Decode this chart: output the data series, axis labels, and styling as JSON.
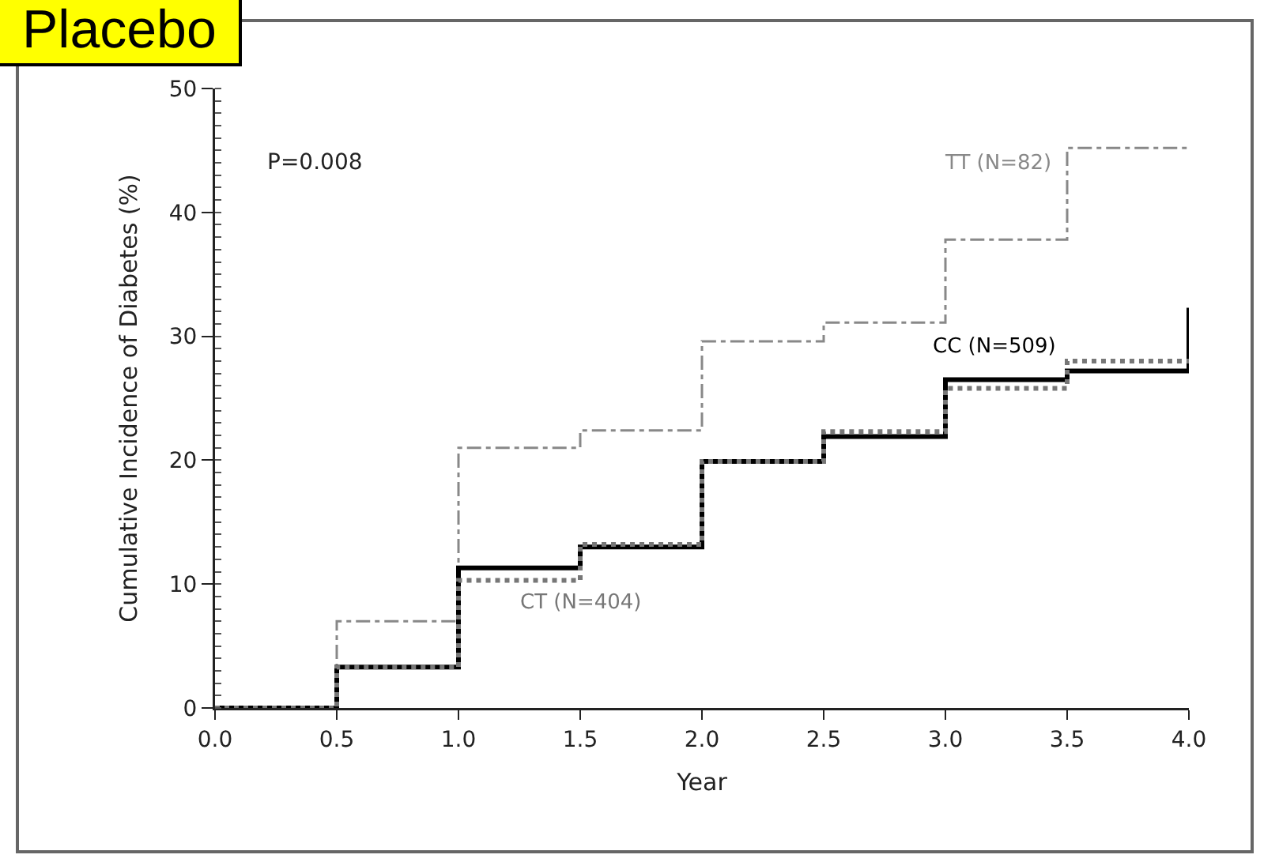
{
  "chart_data": {
    "type": "step",
    "title": "Placebo",
    "xlabel": "Year",
    "ylabel": "Cumulative Incidence of Diabetes (%)",
    "annotations": [
      "P=0.008"
    ],
    "series": [
      {
        "name": "TT (N=82)",
        "color": "#888888",
        "line_style": "dashdot",
        "x": [
          0,
          0.5,
          1,
          1.5,
          2,
          2.5,
          3,
          3.5,
          4
        ],
        "values": [
          0,
          7,
          21,
          22.4,
          29.6,
          31.1,
          37.8,
          45.2,
          45.2
        ]
      },
      {
        "name": "CC (N=509)",
        "color": "#000000",
        "line_style": "solid",
        "x": [
          0,
          0.5,
          1,
          1.5,
          2,
          2.5,
          3,
          3.5,
          4,
          4
        ],
        "values": [
          0,
          3.3,
          11.3,
          13,
          19.9,
          21.9,
          26.5,
          27.2,
          27.2,
          32.3
        ]
      },
      {
        "name": "CT (N=404)",
        "color": "#777777",
        "line_style": "dotted",
        "x": [
          0,
          0.5,
          1,
          1.5,
          2,
          2.5,
          3,
          3.5,
          4
        ],
        "values": [
          0,
          3.3,
          10.3,
          13.2,
          19.9,
          22.3,
          25.8,
          28,
          28
        ]
      }
    ],
    "xlim": [
      0,
      4
    ],
    "ylim": [
      0,
      50
    ],
    "xticks": [
      {
        "value": 0,
        "label": "0.0"
      },
      {
        "value": 0.5,
        "label": "0.5"
      },
      {
        "value": 1,
        "label": "1.0"
      },
      {
        "value": 1.5,
        "label": "1.5"
      },
      {
        "value": 2,
        "label": "2.0"
      },
      {
        "value": 2.5,
        "label": "2.5"
      },
      {
        "value": 3,
        "label": "3.0"
      },
      {
        "value": 3.5,
        "label": "3.5"
      },
      {
        "value": 4,
        "label": "4.0"
      }
    ],
    "yticks": [
      0,
      10,
      20,
      30,
      40,
      50
    ],
    "grid": false,
    "legend": false
  }
}
